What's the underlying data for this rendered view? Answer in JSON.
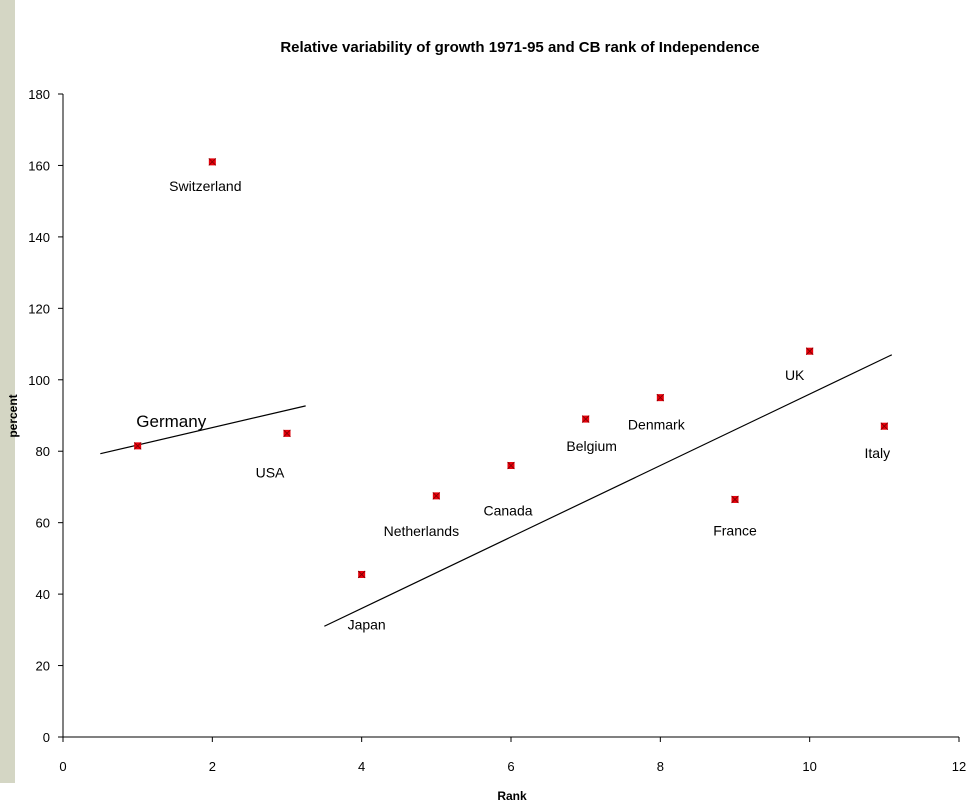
{
  "chart_data": {
    "type": "scatter",
    "title": "Relative variability of growth 1971-95 and CB rank of Independence",
    "xlabel": "Rank",
    "ylabel": "percent",
    "xlim": [
      0,
      12
    ],
    "ylim": [
      0,
      180
    ],
    "x_ticks": [
      0,
      2,
      4,
      6,
      8,
      10,
      12
    ],
    "y_ticks": [
      0,
      20,
      40,
      60,
      80,
      100,
      120,
      140,
      160,
      180
    ],
    "grid": false,
    "legend": "none",
    "marker_color": "#e8000b",
    "points": [
      {
        "label": "Germany",
        "x": 1,
        "y": 81.5
      },
      {
        "label": "Switzerland",
        "x": 2,
        "y": 161
      },
      {
        "label": "USA",
        "x": 3,
        "y": 85
      },
      {
        "label": "Japan",
        "x": 4,
        "y": 45.5
      },
      {
        "label": "Netherlands",
        "x": 5,
        "y": 67.5
      },
      {
        "label": "Canada",
        "x": 6,
        "y": 76
      },
      {
        "label": "Belgium",
        "x": 7,
        "y": 89
      },
      {
        "label": "Denmark",
        "x": 8,
        "y": 95
      },
      {
        "label": "France",
        "x": 9,
        "y": 66.5
      },
      {
        "label": "UK",
        "x": 10,
        "y": 108
      },
      {
        "label": "Italy",
        "x": 11,
        "y": 87
      }
    ],
    "trend_lines": [
      {
        "x": [
          0.5,
          3.25
        ],
        "y": [
          79.3,
          92.7
        ]
      },
      {
        "x": [
          3.5,
          11.1
        ],
        "y": [
          31,
          107
        ]
      }
    ],
    "annotations": [
      {
        "text": "Germany",
        "x": 1.45,
        "y": 88.5
      }
    ]
  }
}
